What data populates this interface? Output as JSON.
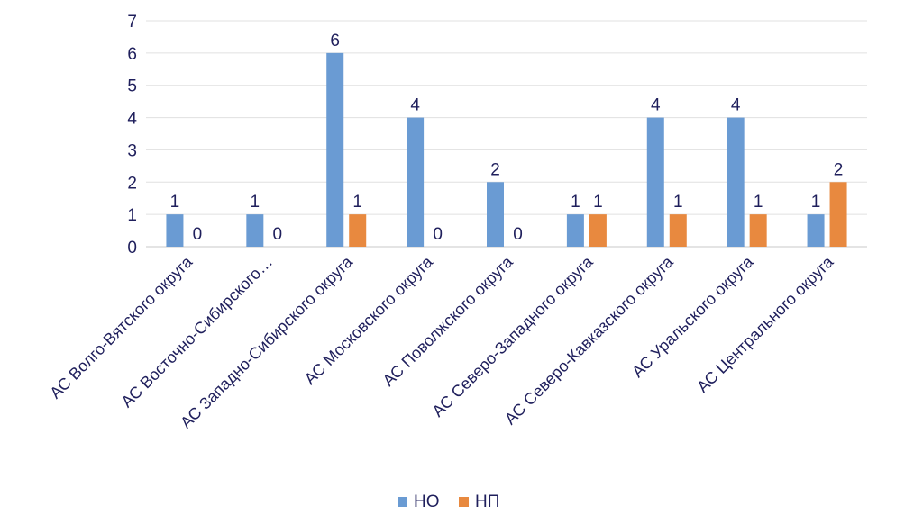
{
  "chart_data": {
    "type": "bar",
    "categories": [
      "АС Волго-Вятского округа",
      "АС Восточно-Сибирского…",
      "АС Западно-Сибирского округа",
      "АС Московского округа",
      "АС Поволжского округа",
      "АС Северо-Западного округа",
      "АС Северо-Кавказского округа",
      "АС Уральского округа",
      "АС Центрального округа"
    ],
    "series": [
      {
        "name": "НО",
        "color": "#6a9bd3",
        "values": [
          1,
          1,
          6,
          4,
          2,
          1,
          4,
          4,
          1
        ]
      },
      {
        "name": "НП",
        "color": "#e8893f",
        "values": [
          0,
          0,
          1,
          0,
          0,
          1,
          1,
          1,
          2
        ]
      }
    ],
    "yticks": [
      "0",
      "1",
      "2",
      "3",
      "4",
      "5",
      "6",
      "7"
    ],
    "ylim": [
      0,
      7
    ],
    "grid": true,
    "legend_position": "bottom",
    "title": "",
    "xlabel": "",
    "ylabel": ""
  }
}
